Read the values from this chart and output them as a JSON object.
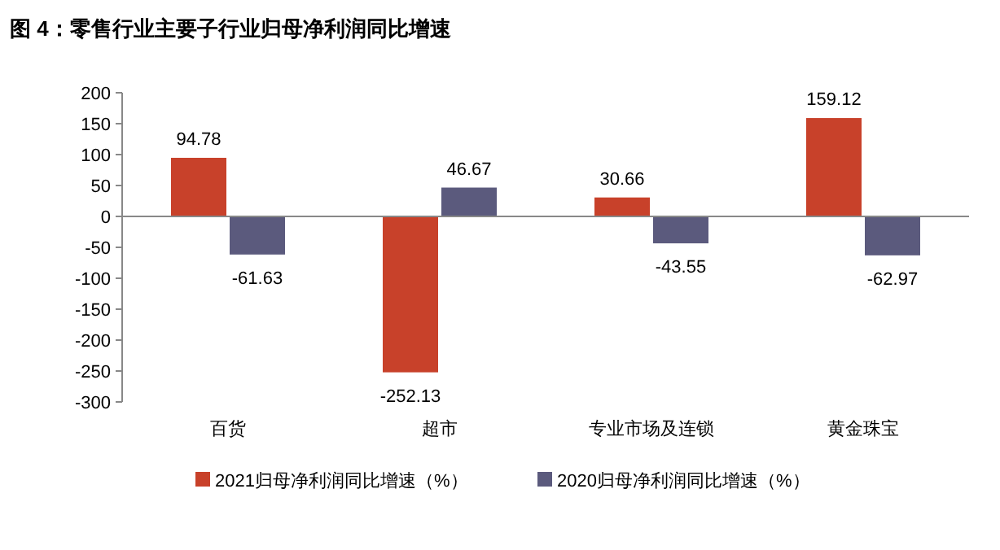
{
  "chart_data": {
    "type": "bar",
    "title": "图 4：零售行业主要子行业归母净利润同比增速",
    "categories": [
      "百货",
      "超市",
      "专业市场及连锁",
      "黄金珠宝"
    ],
    "series": [
      {
        "name": "2021归母净利润同比增速（%）",
        "color": "#c8412a",
        "values": [
          94.78,
          -252.13,
          30.66,
          159.12
        ]
      },
      {
        "name": "2020归母净利润同比增速（%）",
        "color": "#5b5a7d",
        "values": [
          -61.63,
          46.67,
          -43.55,
          -62.97
        ]
      }
    ],
    "ylim": [
      -300,
      200
    ],
    "yticks": [
      -300,
      -250,
      -200,
      -150,
      -100,
      -50,
      0,
      50,
      100,
      150,
      200
    ],
    "data_labels": true,
    "legend": "bottom"
  }
}
